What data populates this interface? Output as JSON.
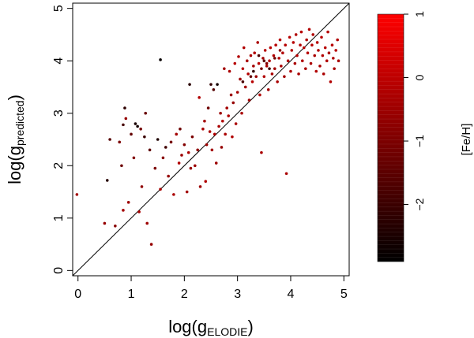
{
  "chart_data": {
    "type": "scatter",
    "xlabel": {
      "prefix": "log(g",
      "subscript": "ELODIE",
      "suffix": ")"
    },
    "ylabel": {
      "prefix": "log(g",
      "subscript": "predicted",
      "suffix": ")"
    },
    "xlim": [
      -0.1,
      5.1
    ],
    "ylim": [
      -0.1,
      5.1
    ],
    "xticks": [
      "0",
      "1",
      "2",
      "3",
      "4",
      "5"
    ],
    "yticks": [
      "0",
      "1",
      "2",
      "3",
      "4",
      "5"
    ],
    "identity_line": true,
    "grid": false,
    "colorbar": {
      "label": "[Fe/H]",
      "range": [
        -2.9,
        1.0
      ],
      "ticks": [
        "1",
        "0",
        "−1",
        "−2"
      ],
      "tick_values": [
        1,
        0,
        -1,
        -2
      ],
      "color_low": "#000000",
      "color_high": "#ff0000"
    },
    "point_color_note": "color encodes [Fe/H]",
    "points": [
      [
        -0.02,
        1.45,
        -0.4
      ],
      [
        0.5,
        0.9,
        -0.6
      ],
      [
        0.55,
        1.72,
        -2.3
      ],
      [
        0.6,
        2.5,
        -1.6
      ],
      [
        0.7,
        0.85,
        -0.8
      ],
      [
        0.78,
        2.45,
        -1.0
      ],
      [
        0.82,
        2.0,
        -1.2
      ],
      [
        0.85,
        1.15,
        -0.4
      ],
      [
        0.85,
        2.78,
        -1.8
      ],
      [
        0.88,
        3.1,
        -2.2
      ],
      [
        0.9,
        2.9,
        -0.6
      ],
      [
        0.95,
        1.3,
        -0.5
      ],
      [
        1.0,
        2.6,
        -1.4
      ],
      [
        1.05,
        2.15,
        -0.9
      ],
      [
        1.08,
        2.8,
        -2.5
      ],
      [
        1.12,
        2.75,
        -2.6
      ],
      [
        1.15,
        1.12,
        -0.3
      ],
      [
        1.18,
        2.7,
        -1.1
      ],
      [
        1.2,
        1.6,
        -0.7
      ],
      [
        1.25,
        2.55,
        -2.0
      ],
      [
        1.27,
        3.0,
        -1.3
      ],
      [
        1.3,
        0.9,
        -0.5
      ],
      [
        1.35,
        2.3,
        -1.5
      ],
      [
        1.38,
        0.5,
        -0.6
      ],
      [
        1.45,
        1.95,
        -1.0
      ],
      [
        1.5,
        2.5,
        -2.4
      ],
      [
        1.55,
        4.02,
        -2.8
      ],
      [
        1.55,
        1.55,
        -0.4
      ],
      [
        1.6,
        2.15,
        -0.8
      ],
      [
        1.65,
        2.35,
        -1.9
      ],
      [
        1.7,
        1.8,
        -0.6
      ],
      [
        1.75,
        2.45,
        -1.1
      ],
      [
        1.8,
        1.45,
        -0.3
      ],
      [
        1.85,
        2.6,
        -0.4
      ],
      [
        1.9,
        2.05,
        -0.2
      ],
      [
        1.92,
        2.7,
        -1.2
      ],
      [
        1.95,
        2.2,
        -0.5
      ],
      [
        2.0,
        2.4,
        -0.9
      ],
      [
        2.05,
        1.5,
        -0.4
      ],
      [
        2.08,
        2.25,
        -0.3
      ],
      [
        2.1,
        3.55,
        -2.3
      ],
      [
        2.12,
        1.95,
        -0.6
      ],
      [
        2.15,
        2.55,
        -1.0
      ],
      [
        2.2,
        2.0,
        -0.5
      ],
      [
        2.25,
        2.3,
        -0.7
      ],
      [
        2.28,
        3.3,
        -0.2
      ],
      [
        2.3,
        1.6,
        -0.5
      ],
      [
        2.35,
        2.7,
        -0.3
      ],
      [
        2.38,
        2.85,
        -0.4
      ],
      [
        2.4,
        1.7,
        -0.2
      ],
      [
        2.42,
        2.4,
        -0.5
      ],
      [
        2.45,
        3.1,
        -1.2
      ],
      [
        2.48,
        2.65,
        -0.3
      ],
      [
        2.5,
        3.55,
        -2.1
      ],
      [
        2.52,
        2.3,
        -0.4
      ],
      [
        2.55,
        3.45,
        -1.6
      ],
      [
        2.57,
        2.6,
        -0.2
      ],
      [
        2.6,
        2.05,
        -0.5
      ],
      [
        2.62,
        3.55,
        -2.6
      ],
      [
        2.65,
        2.75,
        -0.3
      ],
      [
        2.68,
        3.0,
        -0.5
      ],
      [
        2.7,
        2.35,
        -0.6
      ],
      [
        2.72,
        2.85,
        -0.2
      ],
      [
        2.75,
        3.85,
        -0.4
      ],
      [
        2.77,
        2.6,
        -0.3
      ],
      [
        2.8,
        3.1,
        -0.4
      ],
      [
        2.83,
        2.95,
        -0.2
      ],
      [
        2.85,
        3.8,
        -0.3
      ],
      [
        2.88,
        3.35,
        -0.5
      ],
      [
        2.9,
        2.55,
        -0.2
      ],
      [
        2.92,
        3.2,
        -0.6
      ],
      [
        2.95,
        3.95,
        -0.1
      ],
      [
        2.97,
        2.8,
        -0.3
      ],
      [
        3.0,
        3.4,
        -0.4
      ],
      [
        3.02,
        4.08,
        -0.2
      ],
      [
        3.05,
        3.65,
        -0.5
      ],
      [
        3.08,
        3.0,
        -0.3
      ],
      [
        3.1,
        3.85,
        -0.1
      ],
      [
        3.12,
        4.25,
        -0.2
      ],
      [
        3.15,
        3.5,
        -0.4
      ],
      [
        3.18,
        4.0,
        -0.3
      ],
      [
        3.2,
        3.75,
        -0.2
      ],
      [
        3.22,
        3.25,
        -0.4
      ],
      [
        3.25,
        4.1,
        -0.3
      ],
      [
        3.28,
        3.6,
        -0.1
      ],
      [
        3.3,
        3.9,
        -0.4
      ],
      [
        3.32,
        4.15,
        -0.2
      ],
      [
        3.35,
        3.7,
        -0.5
      ],
      [
        3.38,
        4.35,
        -0.3
      ],
      [
        3.4,
        3.95,
        -0.1
      ],
      [
        3.42,
        3.35,
        -0.2
      ],
      [
        3.45,
        2.25,
        -0.3
      ],
      [
        3.48,
        4.05,
        -0.4
      ],
      [
        3.5,
        3.7,
        -0.2
      ],
      [
        3.52,
        4.2,
        -0.1
      ],
      [
        3.55,
        3.9,
        -0.3
      ],
      [
        3.58,
        3.45,
        -0.4
      ],
      [
        3.6,
        4.0,
        -0.2
      ],
      [
        3.62,
        4.25,
        -0.1
      ],
      [
        3.65,
        3.75,
        -0.3
      ],
      [
        3.68,
        4.1,
        -0.2
      ],
      [
        3.7,
        3.85,
        -0.4
      ],
      [
        3.72,
        4.3,
        -0.1
      ],
      [
        3.75,
        3.6,
        -0.3
      ],
      [
        3.78,
        4.05,
        -0.2
      ],
      [
        3.8,
        4.4,
        -0.1
      ],
      [
        3.82,
        3.9,
        -0.3
      ],
      [
        3.85,
        4.15,
        -0.2
      ],
      [
        3.88,
        3.7,
        -0.4
      ],
      [
        3.9,
        4.3,
        -0.1
      ],
      [
        3.92,
        1.85,
        -0.3
      ],
      [
        3.95,
        4.0,
        -0.2
      ],
      [
        3.98,
        4.45,
        -0.1
      ],
      [
        4.0,
        3.8,
        -0.3
      ],
      [
        4.02,
        4.2,
        -0.2
      ],
      [
        4.05,
        4.35,
        -0.1
      ],
      [
        4.08,
        3.95,
        -0.3
      ],
      [
        4.1,
        4.5,
        -0.2
      ],
      [
        4.12,
        4.1,
        -0.1
      ],
      [
        4.15,
        3.75,
        -0.3
      ],
      [
        4.18,
        4.3,
        -0.2
      ],
      [
        4.2,
        4.55,
        -0.1
      ],
      [
        4.22,
        4.0,
        -0.2
      ],
      [
        4.25,
        4.25,
        -0.1
      ],
      [
        4.28,
        3.85,
        -0.3
      ],
      [
        4.3,
        4.4,
        -0.2
      ],
      [
        4.32,
        4.15,
        -0.1
      ],
      [
        4.35,
        4.6,
        -0.2
      ],
      [
        4.38,
        3.95,
        -0.3
      ],
      [
        4.4,
        4.3,
        -0.1
      ],
      [
        4.42,
        4.5,
        -0.2
      ],
      [
        4.45,
        4.1,
        -0.3
      ],
      [
        4.48,
        3.8,
        -0.2
      ],
      [
        4.5,
        4.35,
        -0.1
      ],
      [
        4.52,
        4.2,
        -0.2
      ],
      [
        4.55,
        3.9,
        -0.3
      ],
      [
        4.58,
        4.45,
        -0.1
      ],
      [
        4.6,
        4.1,
        -0.2
      ],
      [
        4.62,
        3.75,
        -0.3
      ],
      [
        4.65,
        4.25,
        -0.1
      ],
      [
        4.68,
        4.0,
        -0.2
      ],
      [
        4.7,
        4.55,
        -0.1
      ],
      [
        4.72,
        4.15,
        -0.3
      ],
      [
        4.75,
        3.6,
        -0.2
      ],
      [
        4.78,
        4.3,
        -0.1
      ],
      [
        4.8,
        4.05,
        -0.2
      ],
      [
        4.82,
        3.85,
        -0.3
      ],
      [
        4.85,
        4.2,
        -0.1
      ],
      [
        4.88,
        4.4,
        -0.2
      ],
      [
        4.9,
        4.0,
        -0.3
      ],
      [
        3.1,
        3.6,
        -1.8
      ],
      [
        3.3,
        3.8,
        -2.2
      ],
      [
        3.5,
        4.0,
        -1.5
      ],
      [
        3.6,
        3.85,
        -2.0
      ],
      [
        3.4,
        4.1,
        -1.7
      ],
      [
        3.7,
        4.05,
        -1.2
      ],
      [
        3.55,
        3.95,
        -0.9
      ],
      [
        3.25,
        3.7,
        -1.4
      ],
      [
        3.8,
        4.2,
        -0.8
      ],
      [
        3.45,
        3.85,
        -1.1
      ]
    ]
  }
}
